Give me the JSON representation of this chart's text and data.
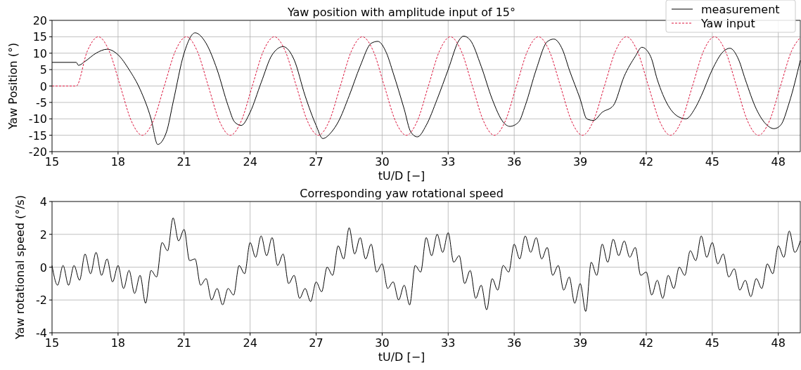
{
  "chart_data": [
    {
      "type": "line",
      "title": "Yaw position with amplitude input of 15°",
      "xlabel": "tU/D [−]",
      "ylabel": "Yaw Position (°)",
      "xlim": [
        15,
        49
      ],
      "xticks": [
        15,
        18,
        21,
        24,
        27,
        30,
        33,
        36,
        39,
        42,
        45,
        48
      ],
      "ylim": [
        -20,
        20
      ],
      "yticks": [
        -20,
        -15,
        -10,
        -5,
        0,
        5,
        10,
        15,
        20
      ],
      "grid": true,
      "legend": "top right",
      "series": [
        {
          "name": "measurement",
          "color": "#000000",
          "line_style": "solid",
          "x": [
            15,
            16.1,
            16.2,
            16.5,
            17,
            17.5,
            18,
            18.5,
            19,
            19.5,
            19.8,
            20.2,
            20.5,
            21,
            21.5,
            22,
            22.5,
            23,
            23.3,
            23.6,
            24,
            24.5,
            25,
            25.5,
            26,
            26.5,
            27,
            27.3,
            27.7,
            28,
            28.5,
            29,
            29.5,
            29.8,
            30.2,
            30.5,
            31,
            31.3,
            31.6,
            32,
            32.5,
            33,
            33.5,
            33.7,
            34,
            34.5,
            35,
            35.5,
            35.8,
            36.2,
            36.5,
            37,
            37.5,
            37.8,
            38.2,
            38.5,
            39,
            39.3,
            39.6,
            40,
            40.5,
            41,
            41.5,
            41.8,
            42.2,
            42.5,
            43,
            43.5,
            43.8,
            44.2,
            44.5,
            45,
            45.5,
            45.8,
            46.2,
            46.5,
            47,
            47.5,
            47.8,
            48.1,
            48.5,
            49
          ],
          "values": [
            7.2,
            7.2,
            6.3,
            7.5,
            10,
            11.2,
            9.5,
            5,
            -1,
            -10,
            -17.8,
            -14,
            -5,
            10,
            16.2,
            13,
            5,
            -6,
            -11,
            -12,
            -8,
            1,
            9.5,
            12,
            8,
            -3,
            -12,
            -16,
            -14,
            -11,
            -3,
            6,
            13,
            13.6,
            10,
            4,
            -7,
            -14,
            -15.5,
            -12,
            -4,
            5,
            14,
            15.2,
            14,
            6,
            -4,
            -11,
            -12.3,
            -11,
            -6,
            5,
            13.5,
            14.3,
            11,
            5,
            -4,
            -10,
            -10.5,
            -8,
            -6,
            3,
            9,
            11.8,
            9,
            2,
            -6,
            -9.5,
            -10,
            -7,
            -3,
            5,
            10.5,
            11.5,
            8,
            2,
            -7,
            -12,
            -13,
            -12,
            -5,
            7.8
          ]
        },
        {
          "name": "Yaw input",
          "color": "#dc143c",
          "line_style": "dashed",
          "x": [
            15,
            16.1,
            16.6,
            17.1,
            17.6,
            18.1,
            18.6,
            19.1,
            19.6,
            20.1,
            20.6,
            21.1,
            21.6,
            22.1,
            22.6,
            23.1,
            23.6,
            24.1,
            24.6,
            25.1,
            25.6,
            26.1,
            26.6,
            27.1,
            27.6,
            28.1,
            28.6,
            29.1,
            29.6,
            30.1,
            30.6,
            31.1,
            31.6,
            32.1,
            32.6,
            33.1,
            33.6,
            34.1,
            34.6,
            35.1,
            35.6,
            36.1,
            36.6,
            37.1,
            37.6,
            38.1,
            38.6,
            39.1,
            39.6,
            40.1,
            40.6,
            41.1,
            41.6,
            42.1,
            42.6,
            43.1,
            43.6,
            44.1,
            44.6,
            45.1,
            45.6,
            46.1,
            46.6,
            47.1,
            47.6,
            48.1,
            48.6,
            49
          ],
          "values": [
            0,
            0,
            10.6,
            15,
            10.6,
            0,
            -10.6,
            -15,
            -10.6,
            0,
            10.6,
            15,
            10.6,
            0,
            -10.6,
            -15,
            -10.6,
            0,
            10.6,
            15,
            10.6,
            0,
            -10.6,
            -15,
            -10.6,
            0,
            10.6,
            15,
            10.6,
            0,
            -10.6,
            -15,
            -10.6,
            0,
            10.6,
            15,
            10.6,
            0,
            -10.6,
            -15,
            -10.6,
            0,
            10.6,
            15,
            10.6,
            0,
            -10.6,
            -15,
            -10.6,
            0,
            10.6,
            15,
            10.6,
            0,
            -10.6,
            -15,
            -10.6,
            0,
            10.6,
            15,
            10.6,
            0,
            -10.6,
            -15,
            -10.6,
            0,
            10.6,
            14.8
          ]
        }
      ]
    },
    {
      "type": "line",
      "title": "Corresponding yaw rotational speed",
      "xlabel": "tU/D [−]",
      "ylabel": "Yaw rotational speed (°/s)",
      "xlim": [
        15,
        49
      ],
      "xticks": [
        15,
        18,
        21,
        24,
        27,
        30,
        33,
        36,
        39,
        42,
        45,
        48
      ],
      "ylim": [
        -4,
        4
      ],
      "yticks": [
        -4,
        -2,
        0,
        2,
        4
      ],
      "grid": true,
      "series": [
        {
          "color": "#000000",
          "line_style": "solid",
          "x": [
            15,
            15.25,
            15.5,
            15.75,
            16,
            16.25,
            16.5,
            16.75,
            17,
            17.25,
            17.5,
            17.75,
            18,
            18.25,
            18.5,
            18.75,
            19,
            19.25,
            19.5,
            19.75,
            20,
            20.25,
            20.5,
            20.75,
            21,
            21.25,
            21.5,
            21.75,
            22,
            22.25,
            22.5,
            22.75,
            23,
            23.25,
            23.5,
            23.75,
            24,
            24.25,
            24.5,
            24.75,
            25,
            25.25,
            25.5,
            25.75,
            26,
            26.25,
            26.5,
            26.75,
            27,
            27.25,
            27.5,
            27.75,
            28,
            28.25,
            28.5,
            28.75,
            29,
            29.25,
            29.5,
            29.75,
            30,
            30.25,
            30.5,
            30.75,
            31,
            31.25,
            31.5,
            31.75,
            32,
            32.25,
            32.5,
            32.75,
            33,
            33.25,
            33.5,
            33.75,
            34,
            34.25,
            34.5,
            34.75,
            35,
            35.25,
            35.5,
            35.75,
            36,
            36.25,
            36.5,
            36.75,
            37,
            37.25,
            37.5,
            37.75,
            38,
            38.25,
            38.5,
            38.75,
            39,
            39.25,
            39.5,
            39.75,
            40,
            40.25,
            40.5,
            40.75,
            41,
            41.25,
            41.5,
            41.75,
            42,
            42.25,
            42.5,
            42.75,
            43,
            43.25,
            43.5,
            43.75,
            44,
            44.25,
            44.5,
            44.75,
            45,
            45.25,
            45.5,
            45.75,
            46,
            46.25,
            46.5,
            46.75,
            47,
            47.25,
            47.5,
            47.75,
            48,
            48.25,
            48.5,
            48.75,
            49
          ],
          "values": [
            0.1,
            -1.1,
            0.1,
            -1.1,
            0.1,
            -0.8,
            0.8,
            -0.4,
            0.9,
            -0.5,
            0.5,
            -0.9,
            0.1,
            -1.3,
            -0.2,
            -1.6,
            -0.5,
            -2.2,
            -0.2,
            -0.6,
            1.5,
            1,
            3,
            1.6,
            2.3,
            0.4,
            0.5,
            -1.1,
            -0.7,
            -2,
            -1.3,
            -2.3,
            -1.3,
            -1.7,
            0.1,
            -0.4,
            1.5,
            0.6,
            1.9,
            0.7,
            1.8,
            0.1,
            0.8,
            -1,
            -0.5,
            -1.9,
            -1.3,
            -2.1,
            -0.9,
            -1.5,
            0,
            -0.5,
            1.3,
            0.5,
            2.4,
            0.8,
            1.8,
            0.5,
            1.4,
            -0.3,
            0.2,
            -1.3,
            -0.9,
            -2,
            -1.1,
            -2.3,
            0.1,
            -0.3,
            1.8,
            0.7,
            2,
            0.9,
            2.1,
            0.3,
            0.7,
            -1,
            -0.2,
            -1.9,
            -1.1,
            -2.6,
            -0.7,
            -1.4,
            0.1,
            -0.3,
            1.4,
            0.5,
            1.9,
            0.9,
            1.8,
            0.5,
            1.2,
            -0.5,
            0.1,
            -1.4,
            -0.6,
            -2.2,
            -1,
            -2.7,
            0.3,
            -0.5,
            1.4,
            0.3,
            1.7,
            0.7,
            1.6,
            0.6,
            1.2,
            -0.5,
            -0.3,
            -1.7,
            -0.8,
            -1.9,
            -0.5,
            -1.3,
            0,
            -0.5,
            1,
            0.4,
            1.9,
            0.6,
            1.5,
            0.2,
            0.8,
            -0.6,
            -0.1,
            -1.4,
            -0.8,
            -1.8,
            -0.7,
            -1.3,
            0.2,
            -0.4,
            1.3,
            0.6,
            2.2,
            0.9,
            1.6
          ]
        }
      ]
    }
  ]
}
